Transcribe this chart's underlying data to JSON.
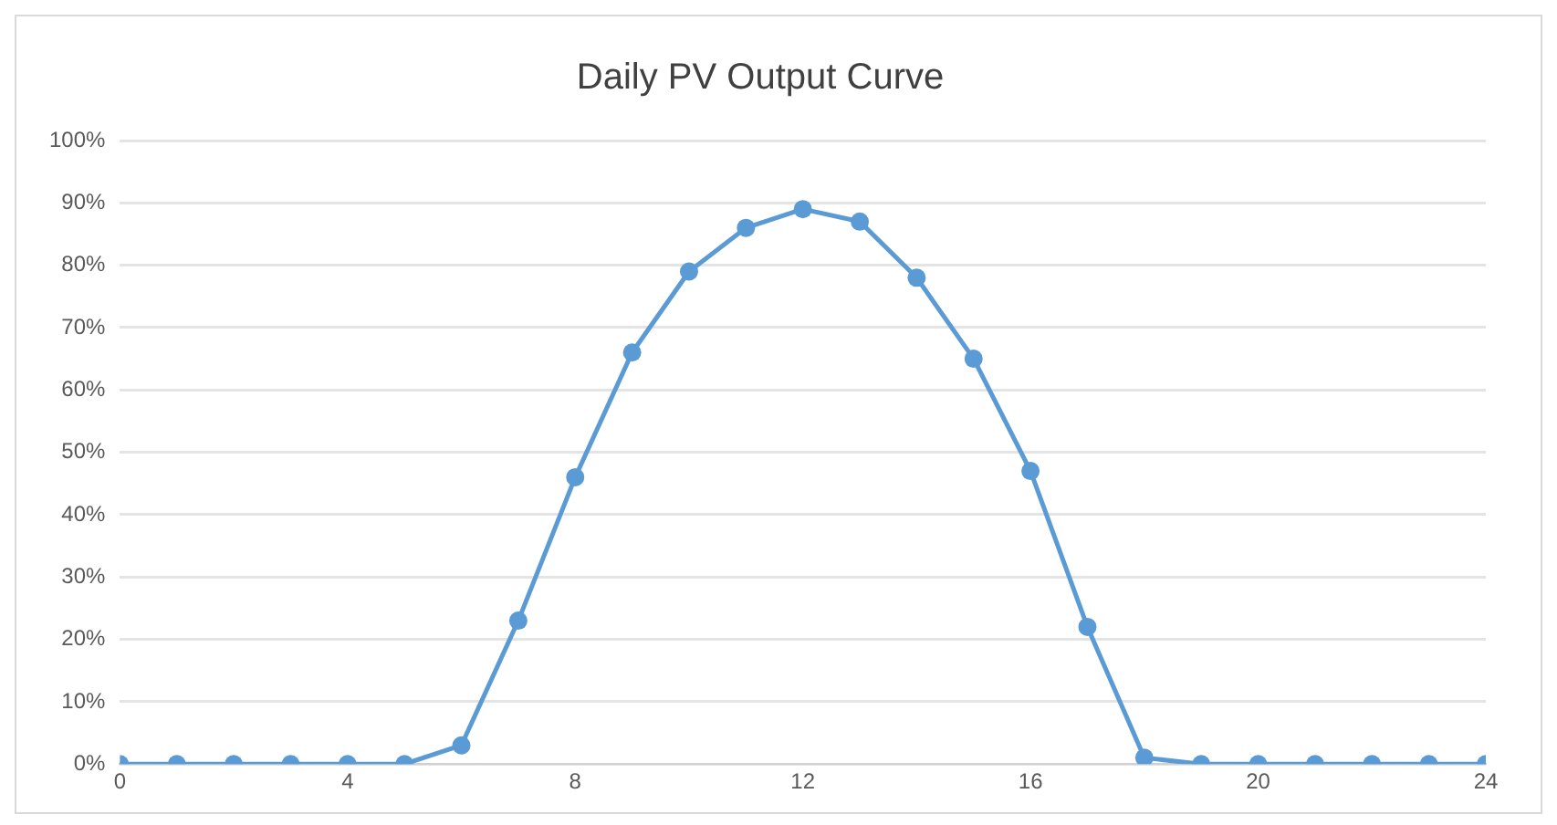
{
  "chart_data": {
    "type": "line",
    "title": "Daily PV Output Curve",
    "x": [
      0,
      1,
      2,
      3,
      4,
      5,
      6,
      7,
      8,
      9,
      10,
      11,
      12,
      13,
      14,
      15,
      16,
      17,
      18,
      19,
      20,
      21,
      22,
      23,
      24
    ],
    "series": [
      {
        "color": "#5b9bd5",
        "values": [
          0,
          0,
          0,
          0,
          0,
          0,
          3,
          23,
          46,
          66,
          79,
          86,
          89,
          87,
          78,
          65,
          47,
          22,
          1,
          0,
          0,
          0,
          0,
          0,
          0
        ]
      }
    ],
    "xlim": [
      0,
      24
    ],
    "xticks": [
      0,
      4,
      8,
      12,
      16,
      20,
      24
    ],
    "ylim": [
      0,
      100
    ],
    "yticks": [
      {
        "value": 0,
        "label": "0%"
      },
      {
        "value": 10,
        "label": "10%"
      },
      {
        "value": 20,
        "label": "20%"
      },
      {
        "value": 30,
        "label": "30%"
      },
      {
        "value": 40,
        "label": "40%"
      },
      {
        "value": 50,
        "label": "50%"
      },
      {
        "value": 60,
        "label": "60%"
      },
      {
        "value": 70,
        "label": "70%"
      },
      {
        "value": 80,
        "label": "80%"
      },
      {
        "value": 90,
        "label": "90%"
      },
      {
        "value": 100,
        "label": "100%"
      }
    ],
    "grid": "y",
    "legend": false,
    "marker": "circle",
    "line_style": "solid"
  }
}
